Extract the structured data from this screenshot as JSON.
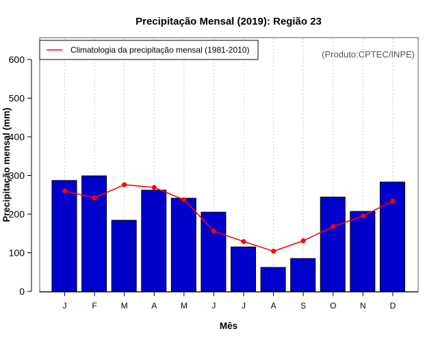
{
  "chart_data": {
    "type": "bar",
    "title": "Precipitação Mensal (2019): Região 23",
    "xlabel": "Mês",
    "ylabel": "Precipitação mensal (mm)",
    "ylim": [
      0,
      650
    ],
    "yticks": [
      0,
      100,
      200,
      300,
      400,
      500,
      600
    ],
    "categories": [
      "J",
      "F",
      "M",
      "A",
      "M",
      "J",
      "J",
      "A",
      "S",
      "O",
      "N",
      "D"
    ],
    "grid": "vertical dotted lines at categories",
    "legend_position": "top-left",
    "annotation": "(Produto:CPTEC/INPE)",
    "series": [
      {
        "name": "Precipitação mensal 2019",
        "type": "bar",
        "color": "#0000CD",
        "values": [
          287,
          299,
          184,
          262,
          241,
          205,
          115,
          62,
          85,
          244,
          207,
          283
        ]
      },
      {
        "name": "Climatologia da precipitação mensal (1981-2010)",
        "type": "line",
        "color": "#FF0000",
        "values": [
          260,
          242,
          276,
          269,
          237,
          156,
          129,
          104,
          131,
          168,
          195,
          234
        ]
      }
    ]
  }
}
